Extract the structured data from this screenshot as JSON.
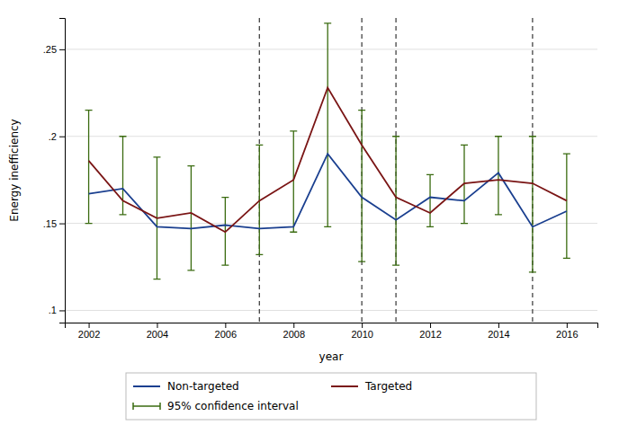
{
  "chart_data": {
    "type": "line",
    "x": [
      2002,
      2003,
      2004,
      2005,
      2006,
      2007,
      2008,
      2009,
      2010,
      2011,
      2012,
      2013,
      2014,
      2015,
      2016
    ],
    "series": [
      {
        "name": "Non-targeted",
        "color": "#1a3f8f",
        "type": "line",
        "values": [
          0.167,
          0.17,
          0.148,
          0.147,
          0.149,
          0.147,
          0.148,
          0.19,
          0.165,
          0.152,
          0.165,
          0.163,
          0.179,
          0.148,
          0.157
        ]
      },
      {
        "name": "Targeted",
        "color": "#7a1515",
        "type": "line",
        "values": [
          0.186,
          0.163,
          0.153,
          0.156,
          0.145,
          0.163,
          0.175,
          0.228,
          0.195,
          0.165,
          0.156,
          0.173,
          0.175,
          0.173,
          0.163
        ]
      },
      {
        "name": "95% confidence interval",
        "color": "#3a6b10",
        "type": "errorbar",
        "lower": [
          0.15,
          0.155,
          0.118,
          0.123,
          0.126,
          0.132,
          0.145,
          0.148,
          0.128,
          0.126,
          0.148,
          0.15,
          0.155,
          0.122,
          0.13
        ],
        "upper": [
          0.215,
          0.2,
          0.188,
          0.183,
          0.165,
          0.195,
          0.203,
          0.265,
          0.215,
          0.2,
          0.178,
          0.195,
          0.2,
          0.2,
          0.19
        ]
      }
    ],
    "vlines": {
      "values": [
        2007,
        2010,
        2011,
        2015
      ],
      "color": "#444444",
      "line_style": "dashed"
    },
    "xlabel": "year",
    "ylabel": "Energy inefficiency",
    "xlim": [
      2001.3,
      2016.9
    ],
    "xticks": [
      2002,
      2004,
      2006,
      2008,
      2010,
      2012,
      2014,
      2016
    ],
    "ylim": [
      0.093,
      0.268
    ],
    "yticks": [
      {
        "value": 0.1,
        "label": ".1"
      },
      {
        "value": 0.15,
        "label": ".15"
      },
      {
        "value": 0.2,
        "label": ".2"
      },
      {
        "value": 0.25,
        "label": ".25"
      }
    ],
    "grid": true,
    "legend": "bottom"
  }
}
